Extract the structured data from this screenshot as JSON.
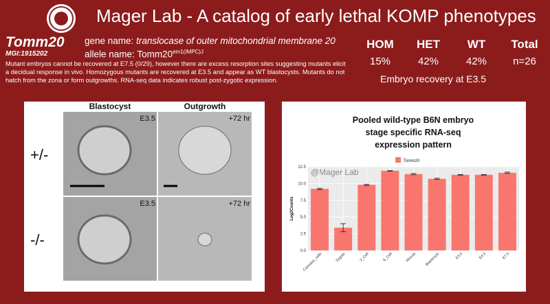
{
  "header": {
    "title": "Mager Lab - A catalog of early lethal KOMP phenotypes"
  },
  "gene": {
    "symbol": "Tomm20",
    "mgi": "MGI:1915202",
    "gene_label": "gene name:",
    "gene_name": "translocase of outer mitochondrial membrane 20",
    "allele_label": "allele name:",
    "allele_symbol": "Tomm20",
    "allele_superscript": "em1(IMPC)J",
    "description": "Mutant embryos cannot be recovered at E7.5 (0/29), however there are excess resorption sites suggesting mutants elicit a decidual response in vivo. Homozygous mutants are recovered at E3.5 and appear as WT blastocysts. Mutants do not hatch from the zona or form outgrowths. RNA-seq data indicates robust post-zygotic expression."
  },
  "table": {
    "headers": [
      "HOM",
      "HET",
      "WT",
      "Total"
    ],
    "values": [
      "15%",
      "42%",
      "42%",
      "n=26"
    ],
    "caption": "Embryo recovery at E3.5"
  },
  "images": {
    "columns": [
      "Blastocyst",
      "Outgrowth"
    ],
    "rows": [
      "+/-",
      "-/-"
    ],
    "labels": [
      [
        "E3.5",
        "+72 hr"
      ],
      [
        "E3.5",
        "+72 hr"
      ]
    ]
  },
  "chart_data": {
    "type": "bar",
    "title": [
      "Pooled wild-type B6N embryo",
      "stage specific RNA-seq",
      "expression pattern"
    ],
    "watermark": "@Mager Lab",
    "ylabel": "Log2Counts",
    "categories": [
      "Cumulus_cells",
      "Zygote",
      "2_Cell",
      "8_Cell",
      "Morula",
      "Blastocyst",
      "E3.5",
      "E4.5",
      "E7.5"
    ],
    "series": [
      {
        "name": "Tomm20",
        "color": "#f8766d",
        "values": [
          9.2,
          3.4,
          9.8,
          11.9,
          11.4,
          10.7,
          11.3,
          11.3,
          11.6
        ],
        "errors": [
          0.1,
          0.6,
          0.1,
          0.05,
          0.1,
          0.1,
          0.05,
          0.05,
          0.1
        ]
      }
    ],
    "ylim": [
      0,
      12.5
    ],
    "yticks": [
      {
        "value": 0,
        "label": "0.0"
      },
      {
        "value": 2.5,
        "label": "2.5"
      },
      {
        "value": 5,
        "label": "5.0"
      },
      {
        "value": 7.5,
        "label": "7.5"
      },
      {
        "value": 10,
        "label": "10.0"
      },
      {
        "value": 12.5,
        "label": "12.5"
      }
    ],
    "grid": true,
    "legend": "top"
  }
}
